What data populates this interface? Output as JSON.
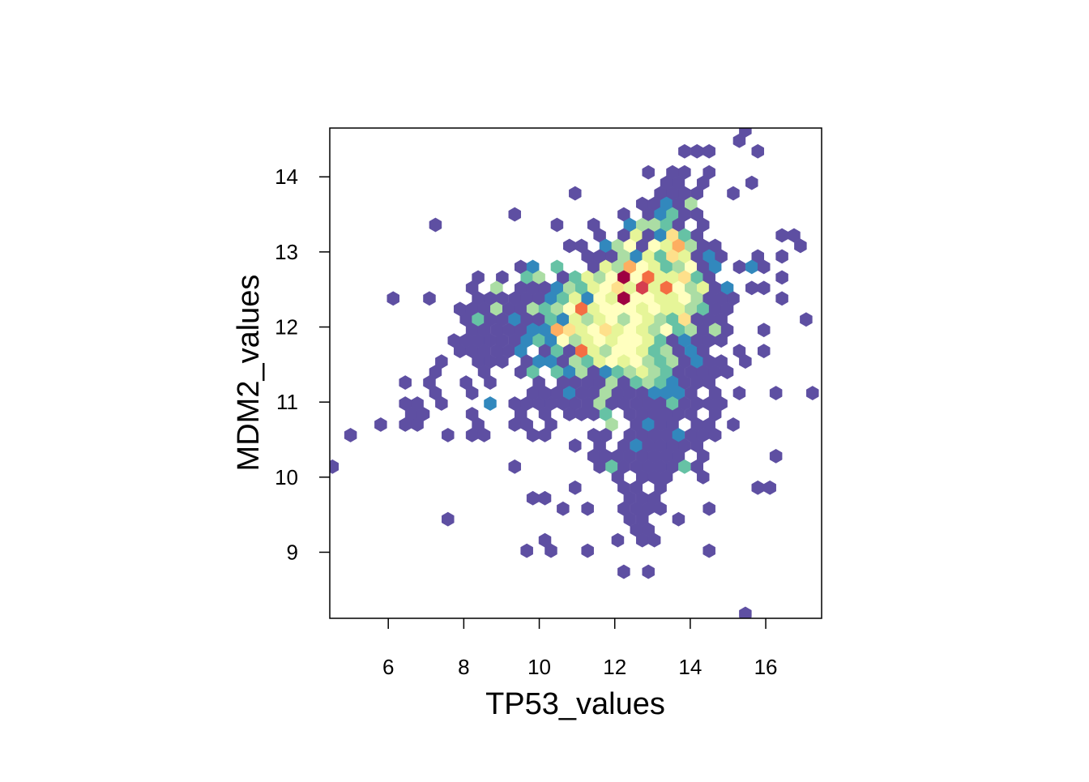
{
  "chart_data": {
    "type": "hexbin",
    "xlabel": "TP53_values",
    "ylabel": "MDM2_values",
    "xlim": [
      4.45,
      17.48
    ],
    "ylim": [
      8.12,
      14.65
    ],
    "xticks": [
      6,
      8,
      10,
      12,
      14,
      16
    ],
    "yticks": [
      9,
      10,
      11,
      12,
      13,
      14
    ],
    "colors": [
      "#5E4FA2",
      "#3288BD",
      "#66C2A5",
      "#ABDDA4",
      "#E6F598",
      "#FFFFBF",
      "#FEE08B",
      "#FDAE61",
      "#F46D43",
      "#D53E4F",
      "#9E0142"
    ],
    "rows": [
      {
        "y": 14.62,
        "x": [
          15.46
        ],
        "counts": [
          1
        ]
      },
      {
        "y": 14.48,
        "x": [
          15.3
        ],
        "counts": [
          1
        ]
      },
      {
        "y": 14.34,
        "x": [
          13.85,
          14.18,
          14.5,
          15.79
        ],
        "counts": [
          1,
          1,
          1,
          1
        ]
      },
      {
        "y": 14.06,
        "x": [
          12.89,
          13.53,
          13.85,
          14.5
        ],
        "counts": [
          1,
          1,
          1,
          1
        ]
      },
      {
        "y": 13.92,
        "x": [
          13.37,
          13.69,
          14.34,
          15.63
        ],
        "counts": [
          1,
          1,
          1,
          1
        ]
      },
      {
        "y": 13.78,
        "x": [
          10.95,
          13.21,
          13.53,
          13.85,
          14.18,
          15.14
        ],
        "counts": [
          1,
          1,
          1,
          1,
          1,
          1
        ]
      },
      {
        "y": 13.64,
        "x": [
          12.73,
          13.05,
          13.37,
          13.69,
          14.02
        ],
        "counts": [
          1,
          1,
          2,
          1,
          4
        ]
      },
      {
        "y": 13.5,
        "x": [
          9.35,
          12.24,
          12.89,
          13.21,
          13.53,
          13.85,
          14.18
        ],
        "counts": [
          1,
          1,
          1,
          2,
          3,
          1,
          1
        ]
      },
      {
        "y": 13.36,
        "x": [
          7.25,
          10.47,
          11.44,
          12.4,
          12.73,
          13.05,
          13.37,
          13.69,
          14.34
        ],
        "counts": [
          1,
          1,
          1,
          2,
          4,
          4,
          3,
          1,
          1
        ]
      },
      {
        "y": 13.22,
        "x": [
          11.6,
          12.24,
          12.57,
          12.89,
          13.21,
          13.53,
          13.85,
          14.18,
          16.43,
          16.75
        ],
        "counts": [
          1,
          1,
          5,
          1,
          2,
          7,
          3,
          1,
          1,
          1
        ]
      },
      {
        "y": 13.08,
        "x": [
          10.8,
          11.12,
          11.76,
          12.08,
          12.4,
          12.73,
          13.05,
          13.37,
          13.69,
          14.02,
          14.34,
          14.66,
          16.92
        ],
        "counts": [
          1,
          1,
          2,
          4,
          6,
          1,
          6,
          5,
          8,
          4,
          1,
          1,
          1
        ]
      },
      {
        "y": 12.94,
        "x": [
          11.28,
          11.6,
          11.92,
          12.24,
          12.57,
          12.89,
          13.21,
          13.53,
          13.85,
          14.18,
          14.5,
          14.82,
          15.79,
          16.43
        ],
        "counts": [
          1,
          1,
          1,
          4,
          2,
          5,
          3,
          7,
          5,
          1,
          2,
          1,
          1,
          1
        ]
      },
      {
        "y": 12.8,
        "x": [
          9.51,
          9.83,
          10.47,
          11.44,
          11.76,
          12.08,
          12.4,
          12.73,
          13.05,
          13.37,
          13.69,
          14.02,
          14.34,
          14.66,
          15.3,
          15.63,
          15.95
        ],
        "counts": [
          1,
          2,
          3,
          1,
          5,
          4,
          8,
          6,
          5,
          3,
          4,
          6,
          1,
          2,
          1,
          2,
          1
        ]
      },
      {
        "y": 12.66,
        "x": [
          8.38,
          9.02,
          9.67,
          9.99,
          10.63,
          10.95,
          11.28,
          11.6,
          11.92,
          12.24,
          12.57,
          12.89,
          13.21,
          13.53,
          13.85,
          14.18,
          14.5,
          16.43
        ],
        "counts": [
          1,
          1,
          3,
          4,
          1,
          3,
          5,
          4,
          6,
          11,
          6,
          9,
          5,
          5,
          7,
          3,
          1,
          1
        ]
      },
      {
        "y": 12.52,
        "x": [
          8.22,
          8.87,
          9.51,
          9.83,
          10.15,
          10.47,
          10.8,
          11.12,
          11.44,
          11.76,
          12.08,
          12.4,
          12.73,
          13.05,
          13.37,
          13.69,
          14.02,
          14.34,
          14.66,
          14.98,
          15.63,
          15.95
        ],
        "counts": [
          1,
          4,
          1,
          1,
          1,
          2,
          4,
          3,
          5,
          6,
          7,
          5,
          10,
          5,
          9,
          6,
          4,
          5,
          1,
          2,
          1,
          1
        ]
      },
      {
        "y": 12.38,
        "x": [
          6.13,
          7.09,
          8.38,
          8.7,
          9.02,
          9.35,
          9.67,
          9.99,
          10.31,
          10.63,
          10.95,
          11.28,
          11.6,
          11.92,
          12.24,
          12.57,
          12.89,
          13.21,
          13.53,
          13.85,
          14.18,
          14.5,
          14.82,
          15.14,
          16.43
        ],
        "counts": [
          1,
          1,
          1,
          1,
          1,
          1,
          1,
          1,
          2,
          3,
          5,
          2,
          6,
          5,
          11,
          6,
          6,
          5,
          5,
          6,
          4,
          1,
          1,
          1,
          1
        ]
      },
      {
        "y": 12.24,
        "x": [
          7.9,
          8.22,
          8.54,
          8.87,
          9.19,
          9.51,
          9.83,
          10.15,
          10.47,
          10.8,
          11.12,
          11.44,
          11.76,
          12.08,
          12.4,
          12.73,
          13.05,
          13.37,
          13.69,
          14.02,
          14.34,
          14.66,
          14.98
        ],
        "counts": [
          1,
          1,
          1,
          4,
          1,
          1,
          4,
          3,
          4,
          6,
          9,
          5,
          6,
          6,
          6,
          5,
          6,
          5,
          5,
          4,
          3,
          1,
          1
        ]
      },
      {
        "y": 12.1,
        "x": [
          8.06,
          8.38,
          8.7,
          9.02,
          9.35,
          9.67,
          9.99,
          10.31,
          10.63,
          10.95,
          11.28,
          11.6,
          11.92,
          12.24,
          12.57,
          12.89,
          13.21,
          13.53,
          13.85,
          14.18,
          14.5,
          14.82,
          17.07
        ],
        "counts": [
          1,
          3,
          1,
          1,
          2,
          1,
          1,
          3,
          2,
          5,
          4,
          5,
          6,
          4,
          6,
          5,
          4,
          3,
          7,
          1,
          1,
          1,
          1
        ]
      },
      {
        "y": 11.96,
        "x": [
          8.22,
          8.54,
          8.87,
          9.19,
          9.51,
          9.83,
          10.15,
          10.47,
          10.8,
          11.12,
          11.44,
          11.76,
          12.08,
          12.4,
          12.73,
          13.05,
          13.37,
          13.69,
          14.02,
          14.34,
          14.66,
          14.98,
          15.95
        ],
        "counts": [
          1,
          1,
          1,
          1,
          1,
          2,
          2,
          8,
          7,
          5,
          6,
          7,
          5,
          6,
          5,
          4,
          6,
          3,
          4,
          1,
          4,
          1,
          1
        ]
      },
      {
        "y": 11.82,
        "x": [
          7.74,
          8.06,
          8.38,
          8.7,
          9.02,
          9.35,
          9.67,
          9.99,
          10.31,
          10.63,
          10.95,
          11.28,
          11.6,
          11.92,
          12.24,
          12.57,
          12.89,
          13.21,
          13.53,
          13.85,
          14.18,
          14.5,
          14.82
        ],
        "counts": [
          1,
          1,
          1,
          1,
          1,
          1,
          2,
          3,
          2,
          6,
          4,
          5,
          6,
          5,
          6,
          6,
          5,
          3,
          1,
          2,
          1,
          1,
          1
        ]
      },
      {
        "y": 11.68,
        "x": [
          7.9,
          8.22,
          8.54,
          8.87,
          9.19,
          9.51,
          10.15,
          10.47,
          10.8,
          11.12,
          11.44,
          11.76,
          12.08,
          12.4,
          12.73,
          13.05,
          13.37,
          13.69,
          14.02,
          14.34,
          15.3,
          15.95
        ],
        "counts": [
          1,
          1,
          1,
          1,
          1,
          2,
          1,
          3,
          1,
          9,
          5,
          4,
          6,
          6,
          5,
          3,
          4,
          1,
          2,
          1,
          1,
          1
        ]
      },
      {
        "y": 11.54,
        "x": [
          7.41,
          8.38,
          8.7,
          9.02,
          9.67,
          9.99,
          10.31,
          10.63,
          10.95,
          11.28,
          11.6,
          11.92,
          12.24,
          12.57,
          12.89,
          13.21,
          13.53,
          13.85,
          14.18,
          14.5,
          14.82,
          15.46
        ],
        "counts": [
          1,
          1,
          1,
          1,
          1,
          2,
          2,
          1,
          4,
          3,
          5,
          6,
          5,
          6,
          4,
          3,
          4,
          1,
          2,
          1,
          1,
          1
        ]
      },
      {
        "y": 11.4,
        "x": [
          7.25,
          8.54,
          9.51,
          9.83,
          10.47,
          10.8,
          11.12,
          11.44,
          11.76,
          12.08,
          12.4,
          12.73,
          13.05,
          13.37,
          13.69,
          14.02,
          14.34,
          14.66,
          14.98
        ],
        "counts": [
          1,
          1,
          1,
          3,
          3,
          2,
          4,
          1,
          2,
          3,
          4,
          5,
          4,
          3,
          1,
          1,
          1,
          1,
          1
        ]
      },
      {
        "y": 11.26,
        "x": [
          6.45,
          7.09,
          8.06,
          8.7,
          9.99,
          10.63,
          10.95,
          11.28,
          11.6,
          11.92,
          12.24,
          12.57,
          12.89,
          13.21,
          13.53,
          13.85,
          14.18,
          14.5
        ],
        "counts": [
          1,
          1,
          1,
          1,
          1,
          1,
          1,
          1,
          1,
          4,
          1,
          3,
          4,
          3,
          2,
          1,
          1,
          1
        ]
      },
      {
        "y": 11.12,
        "x": [
          7.25,
          8.22,
          9.83,
          10.15,
          10.47,
          10.8,
          11.12,
          11.44,
          11.76,
          12.08,
          12.4,
          12.73,
          13.05,
          13.37,
          13.69,
          14.02,
          14.66,
          15.3,
          16.27,
          17.24
        ],
        "counts": [
          1,
          1,
          1,
          1,
          1,
          2,
          1,
          1,
          4,
          1,
          1,
          1,
          2,
          2,
          2,
          1,
          1,
          1,
          1,
          1
        ]
      },
      {
        "y": 10.98,
        "x": [
          6.45,
          6.77,
          7.41,
          8.7,
          9.35,
          9.67,
          9.99,
          10.31,
          10.63,
          10.95,
          11.28,
          11.6,
          11.92,
          12.24,
          12.57,
          12.89,
          13.21,
          13.53,
          13.85,
          14.18,
          14.5,
          14.82
        ],
        "counts": [
          1,
          1,
          1,
          2,
          1,
          1,
          1,
          1,
          1,
          1,
          1,
          4,
          1,
          1,
          1,
          1,
          1,
          3,
          1,
          1,
          1,
          1
        ]
      },
      {
        "y": 10.84,
        "x": [
          6.61,
          6.93,
          8.22,
          9.51,
          10.15,
          10.8,
          11.12,
          11.44,
          11.76,
          12.4,
          12.73,
          13.05,
          13.37,
          13.69,
          14.02,
          14.66
        ],
        "counts": [
          1,
          1,
          1,
          1,
          1,
          1,
          1,
          1,
          3,
          1,
          1,
          1,
          1,
          1,
          1,
          1
        ]
      },
      {
        "y": 10.7,
        "x": [
          5.8,
          6.45,
          6.77,
          8.38,
          9.35,
          9.67,
          10.31,
          11.92,
          12.57,
          12.89,
          13.21,
          13.53,
          14.18,
          14.5,
          15.14
        ],
        "counts": [
          1,
          1,
          1,
          1,
          1,
          1,
          1,
          4,
          1,
          2,
          1,
          1,
          1,
          1,
          1
        ]
      },
      {
        "y": 10.56,
        "x": [
          5.0,
          7.58,
          8.22,
          8.54,
          9.83,
          10.15,
          11.44,
          11.76,
          12.4,
          12.73,
          13.05,
          13.37,
          13.69,
          14.02,
          14.34,
          14.66
        ],
        "counts": [
          1,
          1,
          1,
          1,
          1,
          1,
          1,
          1,
          1,
          1,
          1,
          1,
          2,
          1,
          1,
          1
        ]
      },
      {
        "y": 10.42,
        "x": [
          10.95,
          11.6,
          12.24,
          12.57,
          12.89,
          13.21,
          13.53,
          13.85,
          14.18
        ],
        "counts": [
          1,
          1,
          1,
          2,
          1,
          1,
          1,
          1,
          1
        ]
      },
      {
        "y": 10.28,
        "x": [
          11.44,
          11.76,
          12.08,
          12.4,
          12.73,
          13.05,
          13.37,
          13.69,
          14.34,
          16.27
        ],
        "counts": [
          1,
          1,
          1,
          1,
          1,
          1,
          1,
          1,
          1,
          1
        ]
      },
      {
        "y": 10.14,
        "x": [
          4.52,
          9.35,
          11.6,
          11.92,
          12.24,
          12.57,
          12.89,
          13.21,
          13.53,
          13.85,
          14.18
        ],
        "counts": [
          1,
          1,
          1,
          3,
          1,
          1,
          1,
          1,
          1,
          3,
          1
        ]
      },
      {
        "y": 10.0,
        "x": [
          12.08,
          12.73,
          13.05,
          13.37,
          14.34
        ],
        "counts": [
          1,
          1,
          1,
          1,
          1
        ]
      },
      {
        "y": 9.86,
        "x": [
          10.95,
          12.24,
          12.57,
          13.21,
          15.79,
          16.11
        ],
        "counts": [
          1,
          1,
          1,
          1,
          1,
          1
        ]
      },
      {
        "y": 9.72,
        "x": [
          9.83,
          10.15,
          12.4,
          12.73,
          13.05
        ],
        "counts": [
          1,
          1,
          1,
          1,
          1
        ]
      },
      {
        "y": 9.58,
        "x": [
          10.63,
          11.28,
          12.24,
          12.57,
          12.89,
          13.21,
          14.5
        ],
        "counts": [
          1,
          1,
          1,
          1,
          1,
          1,
          1
        ]
      },
      {
        "y": 9.44,
        "x": [
          7.58,
          12.4,
          12.73,
          13.69
        ],
        "counts": [
          1,
          1,
          1,
          1
        ]
      },
      {
        "y": 9.3,
        "x": [
          12.57,
          12.89
        ],
        "counts": [
          1,
          1
        ]
      },
      {
        "y": 9.16,
        "x": [
          10.15,
          12.08,
          12.73,
          13.05
        ],
        "counts": [
          1,
          1,
          1,
          1
        ]
      },
      {
        "y": 9.02,
        "x": [
          9.67,
          10.31,
          11.28,
          14.5
        ],
        "counts": [
          1,
          1,
          1,
          1
        ]
      },
      {
        "y": 8.74,
        "x": [
          12.24,
          12.89
        ],
        "counts": [
          1,
          1
        ]
      },
      {
        "y": 8.18,
        "x": [
          15.46
        ],
        "counts": [
          1
        ]
      }
    ]
  }
}
